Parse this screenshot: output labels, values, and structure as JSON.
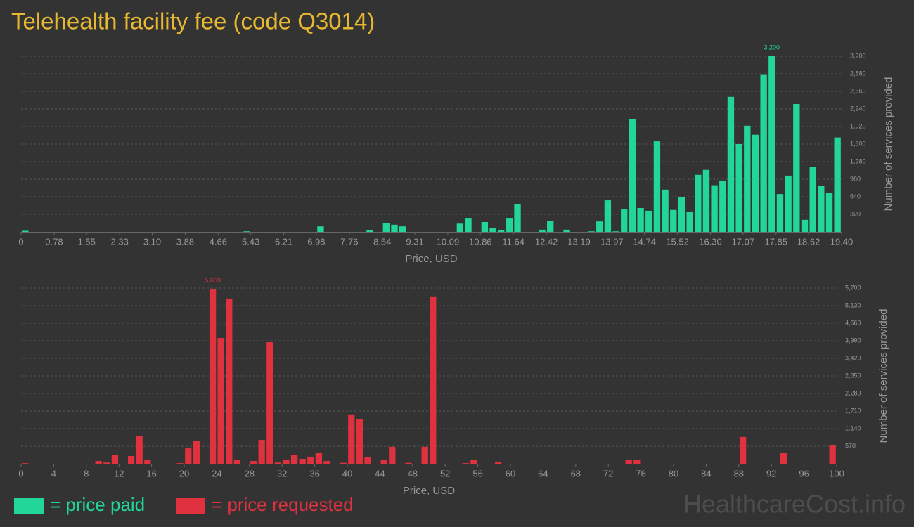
{
  "title": "Telehealth facility fee (code Q3014)",
  "chart_data": [
    {
      "type": "histogram",
      "name": "= price paid",
      "color": "#22d69a",
      "xlabel": "Price, USD",
      "ylabel": "Number of services provided",
      "grid": true,
      "xlim": [
        0,
        19.4
      ],
      "ylim": [
        0,
        3200
      ],
      "xticks": [
        0,
        0.78,
        1.55,
        2.33,
        {
          "value": 3.1,
          "label": "3.10"
        },
        3.88,
        4.66,
        5.43,
        6.21,
        6.98,
        7.76,
        8.54,
        9.31,
        10.09,
        10.86,
        11.64,
        12.42,
        13.19,
        13.97,
        14.74,
        15.52,
        {
          "value": 16.3,
          "label": "16.30"
        },
        17.07,
        17.85,
        18.62,
        {
          "value": 19.4,
          "label": "19.40"
        }
      ],
      "yticks": [
        320,
        640,
        960,
        {
          "value": 1280,
          "label": "1,280"
        },
        {
          "value": 1600,
          "label": "1,600"
        },
        {
          "value": 1920,
          "label": "1,920"
        },
        {
          "value": 2240,
          "label": "2,240"
        },
        {
          "value": 2560,
          "label": "2,560"
        },
        {
          "value": 2880,
          "label": "2,880"
        },
        {
          "value": 3200,
          "label": "3,200"
        }
      ],
      "bins": [
        0,
        0.194,
        0.388,
        0.582,
        0.776,
        0.97,
        1.164,
        1.358,
        1.552,
        1.746,
        1.94,
        2.134,
        2.328,
        2.522,
        2.716,
        2.91,
        3.104,
        3.298,
        3.492,
        3.686,
        3.88,
        4.074,
        4.268,
        4.462,
        4.656,
        4.85,
        5.044,
        5.238,
        5.432,
        5.626,
        5.82,
        6.014,
        6.208,
        6.402,
        6.596,
        6.79,
        6.984,
        7.178,
        7.372,
        7.566,
        7.76,
        7.954,
        8.148,
        8.342,
        8.536,
        8.73,
        8.924,
        9.118,
        9.312,
        9.506,
        9.7,
        9.894,
        10.088,
        10.282,
        10.476,
        10.67,
        10.864,
        11.058,
        11.252,
        11.446,
        11.64,
        11.834,
        12.028,
        12.222,
        12.416,
        12.61,
        12.804,
        12.998,
        13.192,
        13.386,
        13.58,
        13.774,
        13.968,
        14.162,
        14.356,
        14.55,
        14.744,
        14.938,
        15.132,
        15.326,
        15.52,
        15.714,
        15.908,
        16.102,
        16.296,
        16.49,
        16.684,
        16.878,
        17.072,
        17.266,
        17.46,
        17.654,
        17.848,
        18.042,
        18.236,
        18.43,
        18.624,
        18.818,
        19.012,
        19.206,
        19.4
      ],
      "values": [
        20,
        0,
        0,
        0,
        0,
        0,
        0,
        0,
        0,
        0,
        0,
        0,
        0,
        0,
        0,
        0,
        0,
        0,
        0,
        0,
        0,
        0,
        0,
        0,
        0,
        0,
        0,
        10,
        0,
        0,
        0,
        0,
        0,
        0,
        0,
        0,
        100,
        0,
        0,
        0,
        0,
        0,
        30,
        0,
        165,
        130,
        100,
        0,
        0,
        0,
        0,
        0,
        0,
        150,
        255,
        0,
        180,
        70,
        30,
        255,
        500,
        0,
        0,
        40,
        200,
        0,
        40,
        0,
        0,
        10,
        190,
        575,
        10,
        410,
        2050,
        435,
        385,
        1650,
        770,
        400,
        630,
        360,
        1040,
        1130,
        850,
        935,
        2460,
        1600,
        1935,
        1770,
        2860,
        3200,
        690,
        1025,
        2330,
        220,
        1180,
        845,
        705,
        1720
      ],
      "value_labels": [
        null,
        null,
        null,
        null,
        null,
        null,
        null,
        null,
        null,
        null,
        null,
        null,
        null,
        null,
        null,
        null,
        null,
        null,
        null,
        null,
        null,
        null,
        null,
        null,
        null,
        null,
        null,
        null,
        null,
        null,
        null,
        null,
        null,
        null,
        null,
        null,
        null,
        null,
        null,
        null,
        null,
        null,
        null,
        null,
        null,
        null,
        null,
        null,
        null,
        null,
        null,
        null,
        null,
        null,
        null,
        null,
        null,
        null,
        null,
        null,
        null,
        null,
        null,
        null,
        null,
        null,
        null,
        null,
        null,
        null,
        null,
        null,
        null,
        null,
        null,
        null,
        null,
        null,
        null,
        null,
        null,
        null,
        null,
        null,
        null,
        null,
        null,
        null,
        null,
        null,
        null,
        "3,200",
        null,
        null,
        null,
        null,
        null,
        null,
        null,
        null
      ]
    },
    {
      "type": "histogram",
      "name": "= price requested",
      "color": "#e0313f",
      "xlabel": "Price, USD",
      "ylabel": "Number of services provided",
      "grid": true,
      "xlim": [
        0,
        100
      ],
      "ylim": [
        0,
        5700
      ],
      "xticks": [
        0,
        4,
        8,
        12,
        16,
        20,
        24,
        28,
        32,
        36,
        40,
        44,
        48,
        52,
        56,
        60,
        64,
        68,
        72,
        76,
        80,
        84,
        88,
        92,
        96,
        100
      ],
      "yticks": [
        570,
        {
          "value": 1140,
          "label": "1,140"
        },
        {
          "value": 1710,
          "label": "1,710"
        },
        {
          "value": 2280,
          "label": "2,280"
        },
        {
          "value": 2850,
          "label": "2,850"
        },
        {
          "value": 3420,
          "label": "3,420"
        },
        {
          "value": 3990,
          "label": "3,990"
        },
        {
          "value": 4560,
          "label": "4,560"
        },
        {
          "value": 5130,
          "label": "5,130"
        },
        {
          "value": 5700,
          "label": "5,700"
        }
      ],
      "bins": [
        0,
        1,
        2,
        3,
        4,
        5,
        6,
        7,
        8,
        9,
        10,
        11,
        12,
        13,
        14,
        15,
        16,
        17,
        18,
        19,
        20,
        21,
        22,
        23,
        24,
        25,
        26,
        27,
        28,
        29,
        30,
        31,
        32,
        33,
        34,
        35,
        36,
        37,
        38,
        39,
        40,
        41,
        42,
        43,
        44,
        45,
        46,
        47,
        48,
        49,
        50,
        51,
        52,
        53,
        54,
        55,
        56,
        57,
        58,
        59,
        60,
        61,
        62,
        63,
        64,
        65,
        66,
        67,
        68,
        69,
        70,
        71,
        72,
        73,
        74,
        75,
        76,
        77,
        78,
        79,
        80,
        81,
        82,
        83,
        84,
        85,
        86,
        87,
        88,
        89,
        90,
        91,
        92,
        93,
        94,
        95,
        96,
        97,
        98,
        99,
        100
      ],
      "values": [
        20,
        0,
        0,
        0,
        0,
        0,
        0,
        0,
        0,
        90,
        40,
        296,
        0,
        250,
        890,
        137,
        0,
        0,
        0,
        20,
        500,
        750,
        0,
        5659,
        4080,
        5360,
        115,
        0,
        90,
        775,
        3945,
        40,
        115,
        275,
        160,
        230,
        365,
        90,
        0,
        30,
        1600,
        1440,
        205,
        0,
        120,
        550,
        0,
        30,
        0,
        550,
        5430,
        0,
        0,
        0,
        20,
        137,
        0,
        0,
        70,
        0,
        0,
        0,
        0,
        0,
        0,
        0,
        0,
        0,
        0,
        0,
        0,
        0,
        0,
        0,
        115,
        115,
        0,
        0,
        0,
        0,
        0,
        0,
        0,
        0,
        0,
        0,
        0,
        0,
        870,
        0,
        0,
        0,
        0,
        365,
        0,
        0,
        0,
        0,
        0,
        615
      ],
      "value_labels": [
        null,
        null,
        null,
        null,
        null,
        null,
        null,
        null,
        null,
        null,
        null,
        null,
        null,
        null,
        null,
        null,
        null,
        null,
        null,
        null,
        null,
        null,
        null,
        "5,659",
        null,
        null,
        null,
        null,
        null,
        null,
        null,
        null,
        null,
        null,
        null,
        null,
        null,
        null,
        null,
        null,
        null,
        null,
        null,
        null,
        null,
        null,
        null,
        null,
        null,
        null,
        null,
        null,
        null,
        null,
        null,
        null,
        null,
        null,
        null,
        null,
        null,
        null,
        null,
        null,
        null,
        null,
        null,
        null,
        null,
        null,
        null,
        null,
        null,
        null,
        null,
        null,
        null,
        null,
        null,
        null,
        null,
        null,
        null,
        null,
        null,
        null,
        null,
        null,
        null,
        null,
        null,
        null,
        null,
        null,
        null,
        null,
        null,
        null,
        null,
        null
      ]
    }
  ],
  "watermark": "HealthcareCost.info"
}
